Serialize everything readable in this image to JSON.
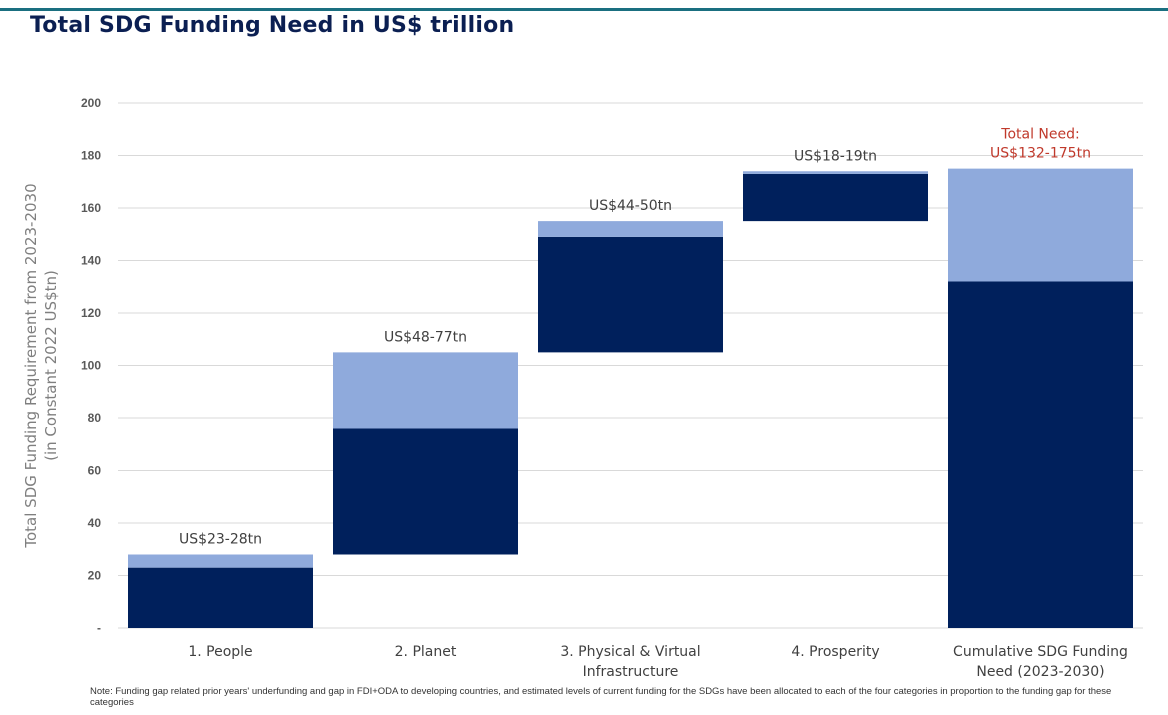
{
  "header": {
    "title": "Total SDG Funding Need in US$ trillion"
  },
  "footer": {
    "note": "Note: Funding gap related prior years' underfunding and gap in FDI+ODA to developing countries, and estimated levels of current funding for the SDGs have been allocated to each of the four categories in proportion to the funding gap for these categories"
  },
  "colors": {
    "dark": "#00205c",
    "light": "#8faadc",
    "grid": "#d9d9d9",
    "highlight": "#c0392b"
  },
  "chart_data": {
    "type": "bar",
    "subtype": "waterfall-stacked",
    "title": "Total SDG Funding Need in US$ trillion",
    "ylabel": [
      "Total SDG Funding Requirement from 2023-2030",
      "(in Constant 2022 US$tn)"
    ],
    "ylim": [
      0,
      200
    ],
    "yticks": [
      0,
      20,
      40,
      60,
      80,
      100,
      120,
      140,
      160,
      180,
      200
    ],
    "ytick_labels": [
      "-",
      "20",
      "40",
      "60",
      "80",
      "100",
      "120",
      "140",
      "160",
      "180",
      "200"
    ],
    "grid": true,
    "bars": [
      {
        "category": [
          "1. People"
        ],
        "base": 0,
        "low": 23,
        "high": 28,
        "label": [
          "US$23-28tn"
        ]
      },
      {
        "category": [
          "2. Planet"
        ],
        "base": 28,
        "low": 48,
        "high": 77,
        "label": [
          "US$48-77tn"
        ]
      },
      {
        "category": [
          "3. Physical & Virtual",
          "Infrastructure"
        ],
        "base": 105,
        "low": 44,
        "high": 50,
        "label": [
          "US$44-50tn"
        ]
      },
      {
        "category": [
          "4. Prosperity"
        ],
        "base": 155,
        "low": 18,
        "high": 19,
        "label": [
          "US$18-19tn"
        ]
      },
      {
        "category": [
          "Cumulative SDG Funding",
          "Need (2023-2030)"
        ],
        "base": 0,
        "low": 132,
        "high": 175,
        "label": [
          "Total Need:",
          "US$132-175tn"
        ],
        "highlight": true
      }
    ]
  }
}
